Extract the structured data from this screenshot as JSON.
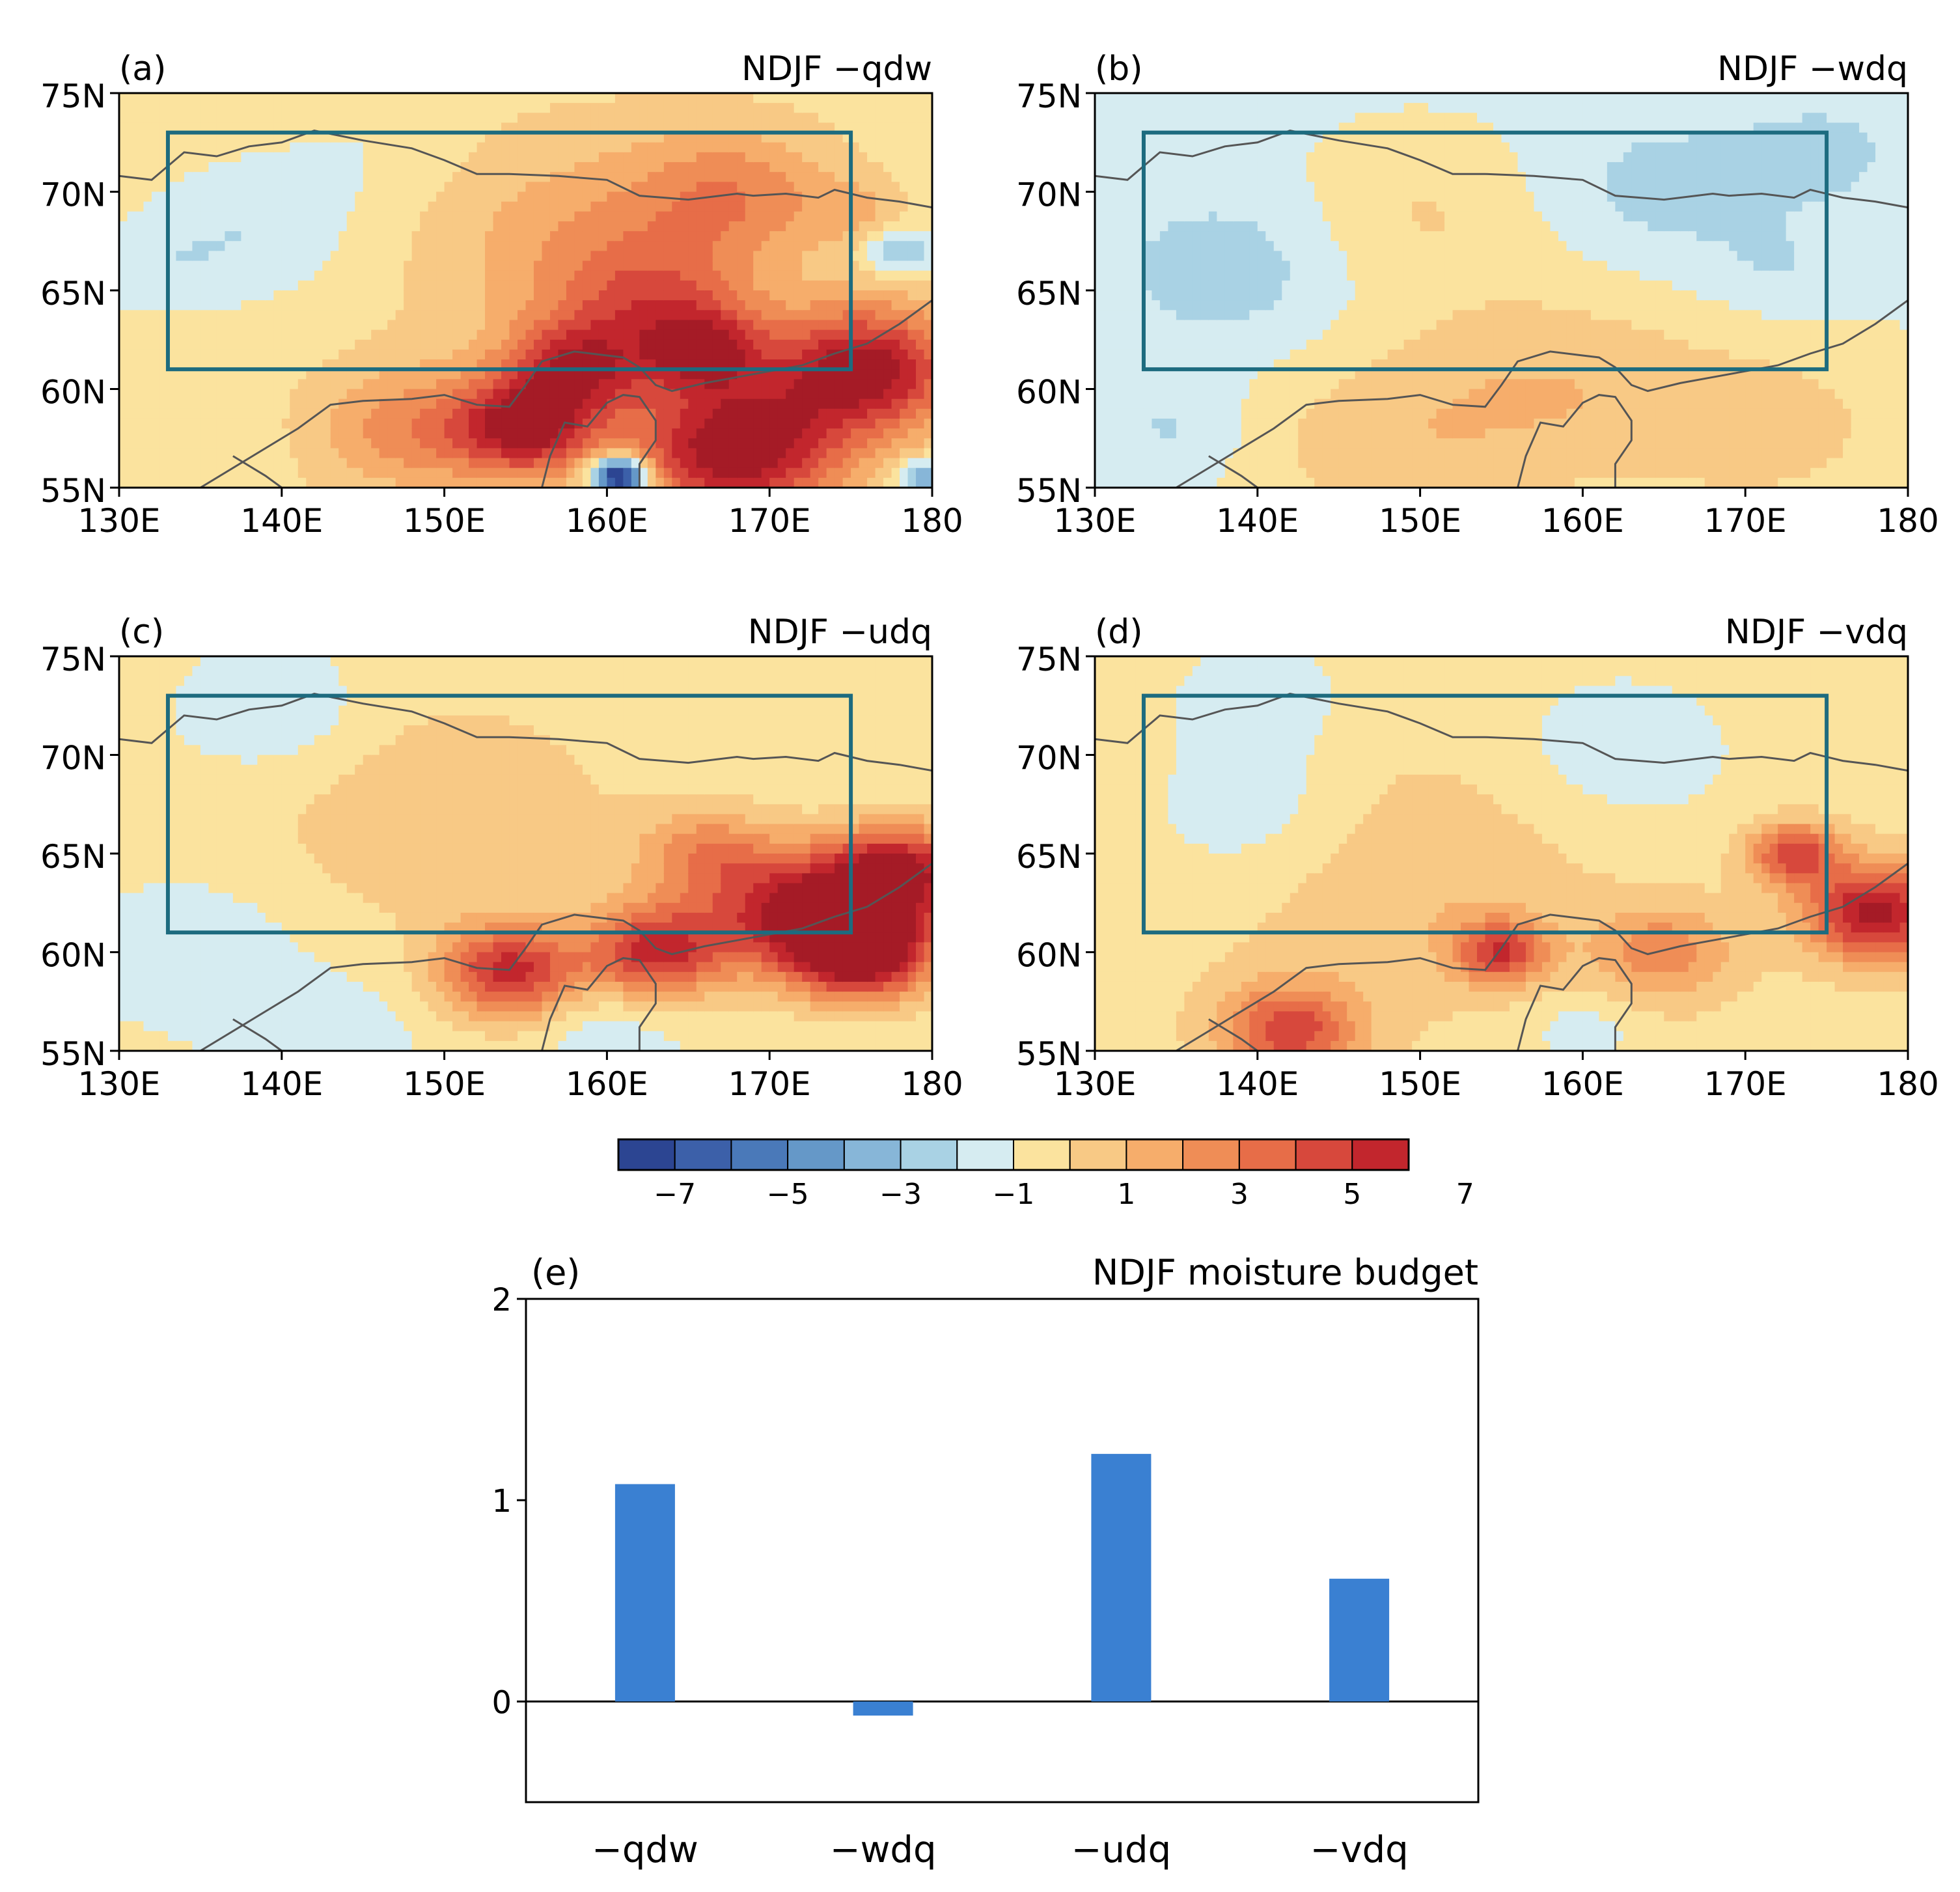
{
  "chart_data": [
    {
      "type": "heatmap",
      "panel_label": "(a)",
      "title": "NDJF −qdw",
      "x_ticks": [
        "130E",
        "140E",
        "150E",
        "160E",
        "170E",
        "180"
      ],
      "y_ticks": [
        "75N",
        "70N",
        "65N",
        "60N",
        "55N"
      ],
      "xlim": [
        130,
        180
      ],
      "ylim": [
        55,
        75
      ],
      "box": {
        "lon": [
          133,
          175
        ],
        "lat": [
          61,
          73
        ]
      },
      "blobs": [
        {
          "lon": 138,
          "lat": 68,
          "value": -1.5,
          "spread": 4.5
        },
        {
          "lon": 132,
          "lat": 66,
          "value": -1,
          "spread": 3
        },
        {
          "lon": 145,
          "lat": 72,
          "value": -0.6,
          "spread": 4
        },
        {
          "lon": 134,
          "lat": 57,
          "value": -0.6,
          "spread": 3
        },
        {
          "lon": 160,
          "lat": 67,
          "value": 2.5,
          "spread": 7
        },
        {
          "lon": 168,
          "lat": 70,
          "value": 2.5,
          "spread": 4
        },
        {
          "lon": 163,
          "lat": 64,
          "value": 3,
          "spread": 4
        },
        {
          "lon": 155,
          "lat": 58,
          "value": 6.5,
          "spread": 3
        },
        {
          "lon": 158,
          "lat": 61,
          "value": 5,
          "spread": 3
        },
        {
          "lon": 168,
          "lat": 57,
          "value": 7.5,
          "spread": 4.5
        },
        {
          "lon": 176,
          "lat": 61,
          "value": 7,
          "spread": 4
        },
        {
          "lon": 166,
          "lat": 62,
          "value": 4.5,
          "spread": 2.5
        },
        {
          "lon": 148,
          "lat": 58,
          "value": 3,
          "spread": 4
        },
        {
          "lon": 160.8,
          "lat": 55.6,
          "value": -10,
          "spread": 1.2
        },
        {
          "lon": 179.5,
          "lat": 55.5,
          "value": -4,
          "spread": 1.2
        },
        {
          "lon": 178,
          "lat": 67,
          "value": -3,
          "spread": 1.5
        },
        {
          "lon": 175,
          "lat": 69,
          "value": 1.5,
          "spread": 2
        }
      ],
      "base": 0.6,
      "lat_trend": 0
    },
    {
      "type": "heatmap",
      "panel_label": "(b)",
      "title": "NDJF −wdq",
      "x_ticks": [
        "130E",
        "140E",
        "150E",
        "160E",
        "170E",
        "180"
      ],
      "y_ticks": [
        "75N",
        "70N",
        "65N",
        "60N",
        "55N"
      ],
      "xlim": [
        130,
        180
      ],
      "ylim": [
        55,
        75
      ],
      "box": {
        "lon": [
          133,
          175
        ],
        "lat": [
          61,
          73
        ]
      },
      "blobs": [
        {
          "lon": 158,
          "lat": 60,
          "value": 2,
          "spread": 7
        },
        {
          "lon": 147,
          "lat": 57,
          "value": 1.5,
          "spread": 6
        },
        {
          "lon": 172,
          "lat": 58,
          "value": 1.5,
          "spread": 6
        },
        {
          "lon": 150,
          "lat": 69,
          "value": 1.2,
          "spread": 5
        },
        {
          "lon": 165,
          "lat": 70,
          "value": -1.2,
          "spread": 5
        },
        {
          "lon": 138,
          "lat": 66,
          "value": -1.4,
          "spread": 5
        },
        {
          "lon": 135,
          "lat": 58,
          "value": -1,
          "spread": 3
        },
        {
          "lon": 172,
          "lat": 66,
          "value": -0.8,
          "spread": 3
        },
        {
          "lon": 175,
          "lat": 72,
          "value": -1,
          "spread": 4
        }
      ],
      "base": -0.2,
      "lat_trend": 0
    },
    {
      "type": "heatmap",
      "panel_label": "(c)",
      "title": "NDJF −udq",
      "x_ticks": [
        "130E",
        "140E",
        "150E",
        "160E",
        "170E",
        "180"
      ],
      "y_ticks": [
        "75N",
        "70N",
        "65N",
        "60N",
        "55N"
      ],
      "xlim": [
        130,
        180
      ],
      "ylim": [
        55,
        75
      ],
      "box": {
        "lon": [
          133,
          175
        ],
        "lat": [
          61,
          73
        ]
      },
      "blobs": [
        {
          "lon": 150,
          "lat": 67,
          "value": 1.6,
          "spread": 8
        },
        {
          "lon": 154,
          "lat": 59,
          "value": 6,
          "spread": 3
        },
        {
          "lon": 163,
          "lat": 60,
          "value": 6,
          "spread": 3
        },
        {
          "lon": 172,
          "lat": 62,
          "value": 7,
          "spread": 4
        },
        {
          "lon": 178,
          "lat": 64,
          "value": 7,
          "spread": 3
        },
        {
          "lon": 176,
          "lat": 60,
          "value": 7.5,
          "spread": 3
        },
        {
          "lon": 166,
          "lat": 65,
          "value": 3,
          "spread": 3
        },
        {
          "lon": 140,
          "lat": 72,
          "value": -1.2,
          "spread": 4
        },
        {
          "lon": 135,
          "lat": 60,
          "value": -1.2,
          "spread": 4
        },
        {
          "lon": 160,
          "lat": 56,
          "value": -1,
          "spread": 3
        },
        {
          "lon": 143,
          "lat": 56,
          "value": -0.8,
          "spread": 4
        }
      ],
      "base": 0.2,
      "lat_trend": 0
    },
    {
      "type": "heatmap",
      "panel_label": "(d)",
      "title": "NDJF −vdq",
      "x_ticks": [
        "130E",
        "140E",
        "150E",
        "160E",
        "170E",
        "180"
      ],
      "y_ticks": [
        "75N",
        "70N",
        "65N",
        "60N",
        "55N"
      ],
      "xlim": [
        130,
        180
      ],
      "ylim": [
        55,
        75
      ],
      "box": {
        "lon": [
          133,
          175
        ],
        "lat": [
          61,
          73
        ]
      },
      "blobs": [
        {
          "lon": 150,
          "lat": 64,
          "value": 1.4,
          "spread": 8
        },
        {
          "lon": 142,
          "lat": 56,
          "value": 5,
          "spread": 3
        },
        {
          "lon": 155,
          "lat": 60,
          "value": 5,
          "spread": 2
        },
        {
          "lon": 178,
          "lat": 62,
          "value": 7,
          "spread": 3
        },
        {
          "lon": 173,
          "lat": 65,
          "value": 5,
          "spread": 2
        },
        {
          "lon": 165,
          "lat": 60,
          "value": 3,
          "spread": 3
        },
        {
          "lon": 140,
          "lat": 67,
          "value": -1.4,
          "spread": 5
        },
        {
          "lon": 162,
          "lat": 70,
          "value": -1.2,
          "spread": 6
        },
        {
          "lon": 140,
          "lat": 73,
          "value": -1.2,
          "spread": 4
        },
        {
          "lon": 160,
          "lat": 56,
          "value": -1.2,
          "spread": 2.5
        }
      ],
      "base": 0.6,
      "lat_trend": 0
    },
    {
      "type": "bar",
      "panel_label": "(e)",
      "title": "NDJF moisture budget",
      "categories": [
        "−qdw",
        "−wdq",
        "−udq",
        "−vdq"
      ],
      "values": [
        1.08,
        -0.07,
        1.23,
        0.61
      ],
      "ylim": [
        -0.5,
        2
      ],
      "y_ticks": [
        0,
        1,
        2
      ],
      "color": "#3a80d2"
    }
  ],
  "colorbar": {
    "tick_labels": [
      "−7",
      "−5",
      "−3",
      "−1",
      "1",
      "3",
      "5",
      "7"
    ],
    "colors": [
      "#2c4592",
      "#3c60a9",
      "#4a79b9",
      "#6598c8",
      "#87b6d8",
      "#a9d2e4",
      "#d6ecf1",
      "#fbe39e",
      "#f8c985",
      "#f6ad6b",
      "#ef8d56",
      "#e76d48",
      "#d7483c",
      "#c2262d"
    ]
  },
  "map_colors": {
    "blue": [
      "#d6ecf1",
      "#a9d2e4",
      "#87b6d8",
      "#6598c8",
      "#4a79b9",
      "#3c60a9",
      "#2c4592",
      "#1e3a7a"
    ],
    "red": [
      "#fbe39e",
      "#f8c985",
      "#f6ad6b",
      "#ef8d56",
      "#e76d48",
      "#d7483c",
      "#c2262d",
      "#a51b26"
    ],
    "box": "#1d6b7f",
    "coast": "#555555"
  }
}
